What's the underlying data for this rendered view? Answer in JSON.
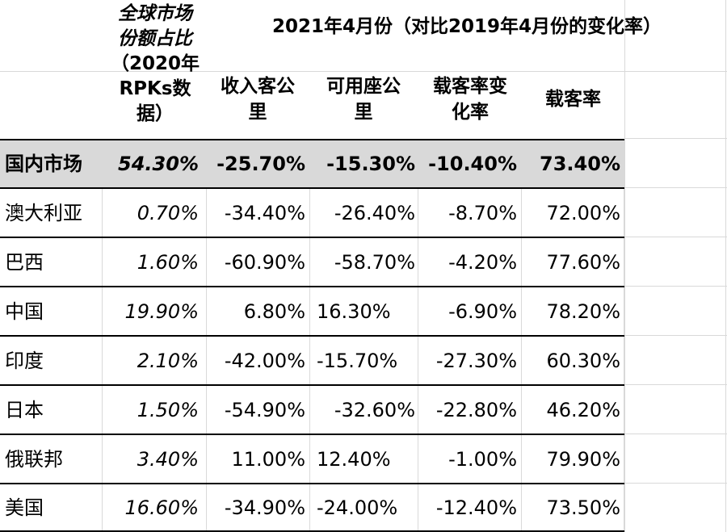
{
  "header": {
    "market_share_lines": [
      "全球市场",
      "份额占比",
      "（2020年",
      "RPKs数",
      "据）"
    ],
    "period_title": "2021年4月份（对比2019年4月份的变化率）",
    "columns": [
      {
        "lines": [
          "收入客公",
          "里"
        ]
      },
      {
        "lines": [
          "可用座公",
          "里"
        ]
      },
      {
        "lines": [
          "载客率变",
          "化率"
        ]
      },
      {
        "lines": [
          "载客率"
        ]
      }
    ]
  },
  "rows": [
    {
      "name": "国内市场",
      "share": "54.30%",
      "rpk": "-25.70%",
      "ask": "-15.30%",
      "lf_change": "-10.40%",
      "lf": "73.40%"
    },
    {
      "name": "澳大利亚",
      "share": "0.70%",
      "rpk": "-34.40%",
      "ask": "-26.40%",
      "lf_change": "-8.70%",
      "lf": "72.00%"
    },
    {
      "name": "巴西",
      "share": "1.60%",
      "rpk": "-60.90%",
      "ask": "-58.70%",
      "lf_change": "-4.20%",
      "lf": "77.60%"
    },
    {
      "name": "中国",
      "share": "19.90%",
      "rpk": "6.80%",
      "ask": "16.30%",
      "lf_change": "-6.90%",
      "lf": "78.20%"
    },
    {
      "name": "印度",
      "share": "2.10%",
      "rpk": "-42.00%",
      "ask": "-15.70%",
      "lf_change": "-27.30%",
      "lf": "60.30%"
    },
    {
      "name": "日本",
      "share": "1.50%",
      "rpk": "-54.90%",
      "ask": "-32.60%",
      "lf_change": "-22.80%",
      "lf": "46.20%"
    },
    {
      "name": "俄联邦",
      "share": "3.40%",
      "rpk": "11.00%",
      "ask": "12.40%",
      "lf_change": "-1.00%",
      "lf": "79.90%"
    },
    {
      "name": "美国",
      "share": "16.60%",
      "rpk": "-34.90%",
      "ask": "-24.00%",
      "lf_change": "-12.40%",
      "lf": "73.50%"
    }
  ],
  "colors": {
    "summary_row_bg": "#d9d9d9",
    "rule": "#000000",
    "gridline": "#d9d9d9"
  }
}
